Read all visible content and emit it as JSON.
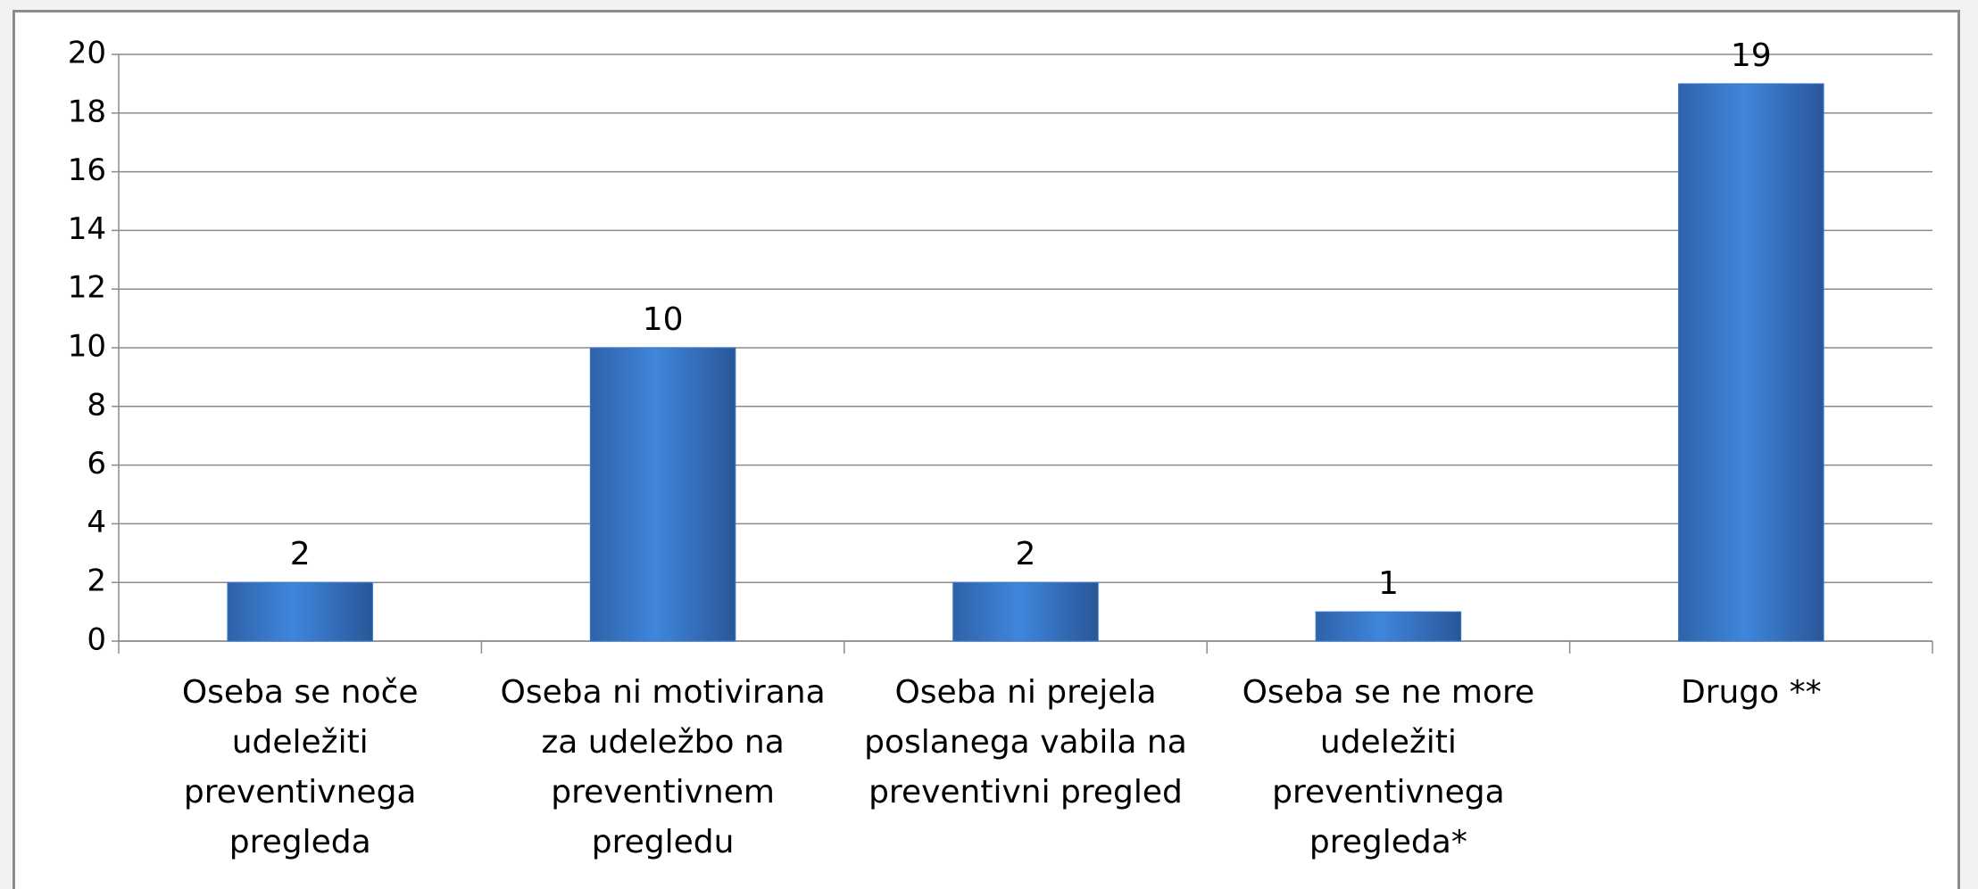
{
  "chart_data": {
    "type": "bar",
    "categories": [
      "Oseba se noče udeležiti preventivnega pregleda",
      "Oseba ni motivirana za udeležbo na preventivnem pregledu",
      "Oseba ni prejela poslanega vabila na preventivni pregled",
      "Oseba se ne more udeležiti preventivnega pregleda*",
      "Drugo **"
    ],
    "values": [
      2,
      10,
      2,
      1,
      19
    ],
    "color": "#3a7bd0",
    "ylim": [
      0,
      20
    ],
    "yticks": [
      0,
      2,
      4,
      6,
      8,
      10,
      12,
      14,
      16,
      18,
      20
    ],
    "grid": true
  }
}
